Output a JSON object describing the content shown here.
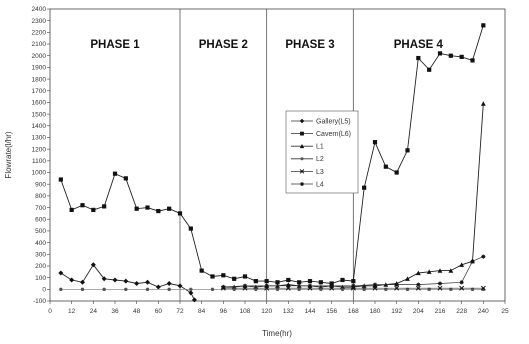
{
  "chart_data": {
    "type": "line",
    "title": "",
    "xlabel": "Time(hr)",
    "ylabel": "Flowrate(l/hr)",
    "xlim": [
      0,
      252
    ],
    "ylim": [
      -100,
      2400
    ],
    "xticks": [
      "0",
      "12",
      "24",
      "36",
      "48",
      "60",
      "72",
      "84",
      "96",
      "108",
      "120",
      "132",
      "144",
      "156",
      "168",
      "180",
      "192",
      "204",
      "216",
      "228",
      "240",
      "25"
    ],
    "yticks": [
      "-100",
      "0",
      "100",
      "200",
      "300",
      "400",
      "500",
      "600",
      "700",
      "800",
      "900",
      "1000",
      "1100",
      "1200",
      "1300",
      "1400",
      "1500",
      "1600",
      "1700",
      "1800",
      "1900",
      "2000",
      "2100",
      "2200",
      "2300",
      "2400"
    ],
    "grid": false,
    "legend_position": "center-right",
    "phase_boundaries": [
      72,
      120,
      168
    ],
    "phases": [
      {
        "label": "PHASE 1",
        "x_center": 36
      },
      {
        "label": "PHASE 2",
        "x_center": 96
      },
      {
        "label": "PHASE 3",
        "x_center": 144
      },
      {
        "label": "PHASE 4",
        "x_center": 204
      }
    ],
    "series": [
      {
        "name": "Gallery(L5)",
        "marker": "diamond",
        "points": [
          [
            6,
            140
          ],
          [
            12,
            80
          ],
          [
            18,
            60
          ],
          [
            24,
            210
          ],
          [
            30,
            90
          ],
          [
            36,
            80
          ],
          [
            42,
            70
          ],
          [
            48,
            50
          ],
          [
            54,
            60
          ],
          [
            60,
            20
          ],
          [
            66,
            50
          ],
          [
            72,
            30
          ],
          [
            78,
            -30
          ],
          [
            80,
            -90
          ]
        ]
      },
      {
        "name": "Cavern(L6)",
        "marker": "square",
        "points": [
          [
            6,
            940
          ],
          [
            12,
            680
          ],
          [
            18,
            720
          ],
          [
            24,
            680
          ],
          [
            30,
            710
          ],
          [
            36,
            990
          ],
          [
            42,
            950
          ],
          [
            48,
            690
          ],
          [
            54,
            700
          ],
          [
            60,
            670
          ],
          [
            66,
            690
          ],
          [
            72,
            650
          ],
          [
            78,
            520
          ],
          [
            84,
            160
          ],
          [
            90,
            110
          ],
          [
            96,
            120
          ],
          [
            102,
            90
          ],
          [
            108,
            110
          ],
          [
            114,
            70
          ],
          [
            120,
            70
          ],
          [
            126,
            60
          ],
          [
            132,
            80
          ],
          [
            138,
            60
          ],
          [
            144,
            70
          ],
          [
            150,
            60
          ],
          [
            156,
            50
          ],
          [
            162,
            80
          ],
          [
            168,
            70
          ],
          [
            174,
            870
          ],
          [
            180,
            1260
          ],
          [
            186,
            1050
          ],
          [
            192,
            1000
          ],
          [
            198,
            1190
          ],
          [
            204,
            1980
          ],
          [
            210,
            1880
          ],
          [
            216,
            2020
          ],
          [
            222,
            2000
          ],
          [
            228,
            1990
          ],
          [
            234,
            1960
          ],
          [
            240,
            2260
          ]
        ]
      },
      {
        "name": "L1",
        "marker": "triangle",
        "points": [
          [
            96,
            20
          ],
          [
            102,
            20
          ],
          [
            108,
            30
          ],
          [
            114,
            20
          ],
          [
            120,
            30
          ],
          [
            126,
            30
          ],
          [
            132,
            40
          ],
          [
            138,
            30
          ],
          [
            144,
            30
          ],
          [
            150,
            20
          ],
          [
            156,
            30
          ],
          [
            162,
            20
          ],
          [
            168,
            20
          ],
          [
            174,
            30
          ],
          [
            180,
            30
          ],
          [
            186,
            40
          ],
          [
            192,
            50
          ],
          [
            198,
            90
          ],
          [
            204,
            140
          ],
          [
            210,
            150
          ],
          [
            216,
            160
          ],
          [
            222,
            160
          ],
          [
            228,
            210
          ],
          [
            234,
            240
          ],
          [
            240,
            1590
          ]
        ]
      },
      {
        "name": "L2",
        "marker": "circle",
        "points": [
          [
            6,
            0
          ],
          [
            18,
            0
          ],
          [
            30,
            0
          ],
          [
            42,
            0
          ],
          [
            54,
            0
          ],
          [
            66,
            0
          ],
          [
            78,
            0
          ],
          [
            90,
            0
          ],
          [
            102,
            0
          ],
          [
            114,
            0
          ],
          [
            126,
            0
          ],
          [
            138,
            0
          ],
          [
            150,
            0
          ],
          [
            162,
            0
          ],
          [
            174,
            0
          ],
          [
            186,
            0
          ],
          [
            198,
            0
          ],
          [
            210,
            0
          ],
          [
            222,
            0
          ],
          [
            234,
            0
          ],
          [
            240,
            0
          ]
        ]
      },
      {
        "name": "L3",
        "marker": "x",
        "points": [
          [
            96,
            10
          ],
          [
            108,
            10
          ],
          [
            120,
            10
          ],
          [
            132,
            10
          ],
          [
            144,
            10
          ],
          [
            156,
            10
          ],
          [
            168,
            10
          ],
          [
            180,
            10
          ],
          [
            192,
            10
          ],
          [
            204,
            10
          ],
          [
            216,
            10
          ],
          [
            228,
            10
          ],
          [
            240,
            10
          ]
        ]
      },
      {
        "name": "L4",
        "marker": "star",
        "points": [
          [
            96,
            20
          ],
          [
            108,
            30
          ],
          [
            120,
            30
          ],
          [
            132,
            30
          ],
          [
            144,
            30
          ],
          [
            156,
            30
          ],
          [
            168,
            30
          ],
          [
            180,
            40
          ],
          [
            192,
            40
          ],
          [
            204,
            40
          ],
          [
            216,
            50
          ],
          [
            228,
            60
          ],
          [
            234,
            240
          ],
          [
            240,
            280
          ]
        ]
      }
    ]
  }
}
